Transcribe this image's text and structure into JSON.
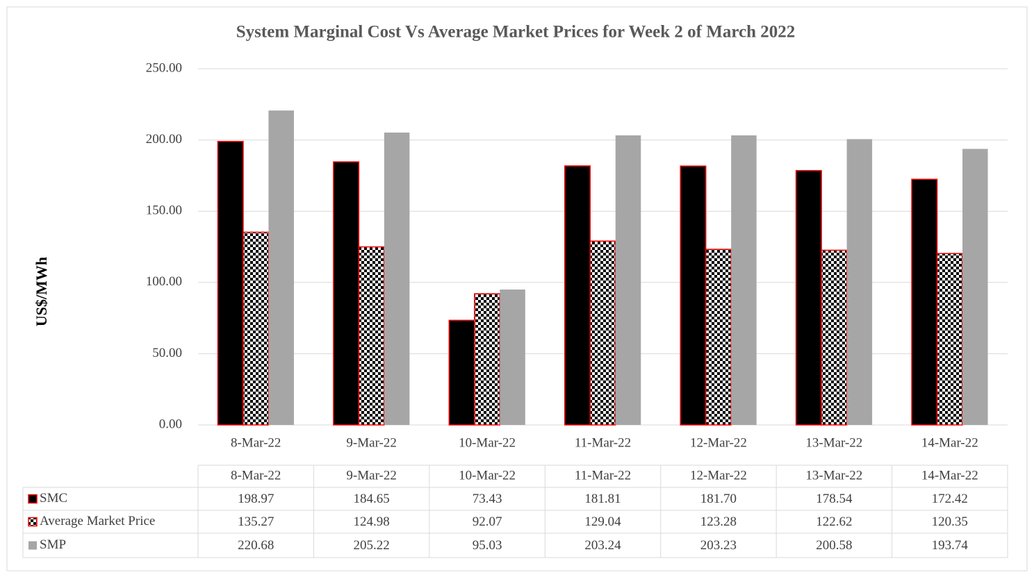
{
  "chart_data": {
    "type": "bar",
    "title": "System Marginal Cost Vs Average Market Prices for Week 2 of March 2022",
    "y_label": "US$/MWh",
    "categories": [
      "8-Mar-22",
      "9-Mar-22",
      "10-Mar-22",
      "11-Mar-22",
      "12-Mar-22",
      "13-Mar-22",
      "14-Mar-22"
    ],
    "series": [
      {
        "name": "SMC",
        "color": "#000000",
        "edgecolor": "#ff0000",
        "values": [
          198.97,
          184.65,
          73.43,
          181.81,
          181.7,
          178.54,
          172.42
        ],
        "value_labels": [
          "198.97",
          "184.65",
          "73.43",
          "181.81",
          "181.70",
          "178.54",
          "172.42"
        ]
      },
      {
        "name": "Average Market Price",
        "color": "#000000",
        "edgecolor": "#ff0000",
        "pattern": "checkerboard",
        "values": [
          135.27,
          124.98,
          92.07,
          129.04,
          123.28,
          122.62,
          120.35
        ],
        "value_labels": [
          "135.27",
          "124.98",
          "92.07",
          "129.04",
          "123.28",
          "122.62",
          "120.35"
        ]
      },
      {
        "name": "SMP",
        "color": "#a6a6a6",
        "values": [
          220.68,
          205.22,
          95.03,
          203.24,
          203.23,
          200.58,
          193.74
        ],
        "value_labels": [
          "220.68",
          "205.22",
          "95.03",
          "203.24",
          "203.23",
          "200.58",
          "193.74"
        ]
      }
    ],
    "ylim": [
      0,
      250
    ],
    "yticks": [
      {
        "value": 0,
        "label": "0.00"
      },
      {
        "value": 50,
        "label": "50.00"
      },
      {
        "value": 100,
        "label": "100.00"
      },
      {
        "value": 150,
        "label": "150.00"
      },
      {
        "value": 200,
        "label": "200.00"
      },
      {
        "value": 250,
        "label": "250.00"
      }
    ],
    "grid": true,
    "data_table": true
  }
}
